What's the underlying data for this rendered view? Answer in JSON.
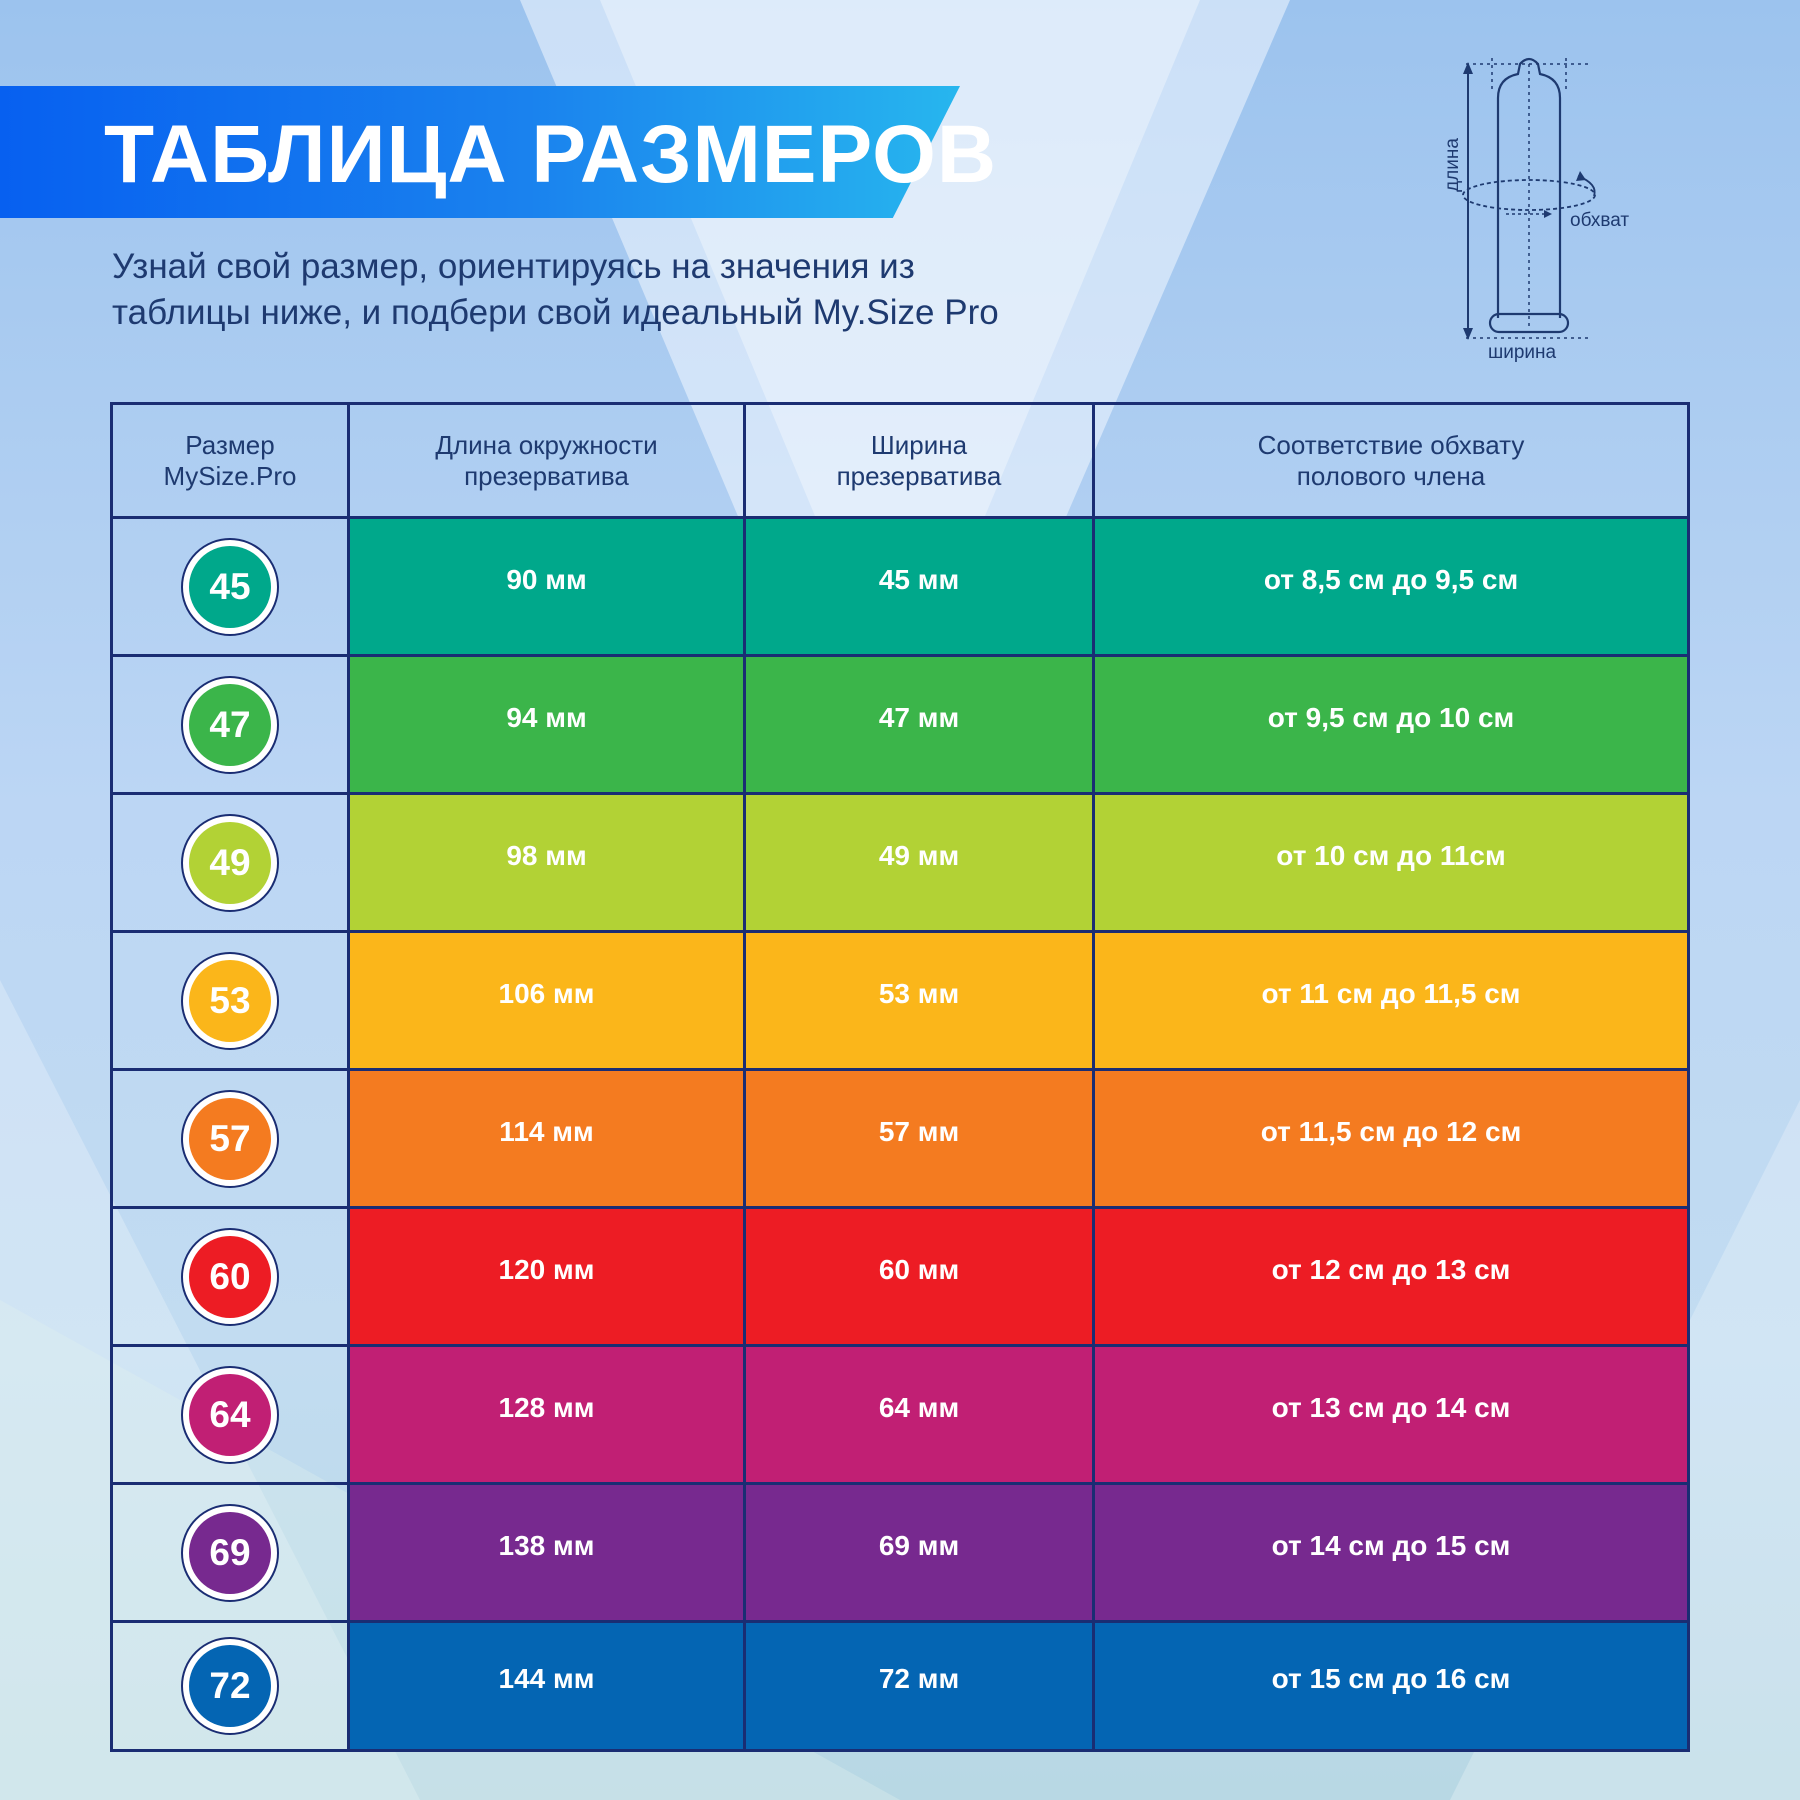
{
  "title": "ТАБЛИЦА РАЗМЕРОВ",
  "subtitle": {
    "line1": "Узнай свой размер, ориентируясь на значения из",
    "line2": "таблицы ниже, и подбери свой идеальный My.Size Pro"
  },
  "diagram": {
    "length_label": "длина",
    "girth_label": "обхват",
    "width_label": "ширина"
  },
  "table": {
    "headers": [
      {
        "line1": "Размер",
        "line2": "MySize.Pro"
      },
      {
        "line1": "Длина окружности",
        "line2": "презерватива"
      },
      {
        "line1": "Ширина",
        "line2": "презерватива"
      },
      {
        "line1": "Соответствие обхвату",
        "line2": "полового члена"
      }
    ],
    "rows": [
      {
        "size": "45",
        "circumference": "90 мм",
        "width": "45 мм",
        "girth": "от 8,5 см до 9,5 см",
        "color": "#00a88b",
        "badge_color": "#00a88b"
      },
      {
        "size": "47",
        "circumference": "94 мм",
        "width": "47 мм",
        "girth": "от 9,5 см до 10 см",
        "color": "#3bb54a",
        "badge_color": "#3bb54a"
      },
      {
        "size": "49",
        "circumference": "98 мм",
        "width": "49 мм",
        "girth": "от 10 см до 11см",
        "color": "#b2d235",
        "badge_color": "#b2d235"
      },
      {
        "size": "53",
        "circumference": "106 мм",
        "width": "53 мм",
        "girth": "от 11 см до 11,5 см",
        "color": "#fbb61a",
        "badge_color": "#fbb61a"
      },
      {
        "size": "57",
        "circumference": "114 мм",
        "width": "57 мм",
        "girth": "от 11,5 см до 12 см",
        "color": "#f47b20",
        "badge_color": "#f47b20"
      },
      {
        "size": "60",
        "circumference": "120 мм",
        "width": "60 мм",
        "girth": "от 12 см до 13 см",
        "color": "#ed1c24",
        "badge_color": "#ed1c24"
      },
      {
        "size": "64",
        "circumference": "128 мм",
        "width": "64 мм",
        "girth": "от 13 см до 14 см",
        "color": "#c11f74",
        "badge_color": "#c11f74"
      },
      {
        "size": "69",
        "circumference": "138 мм",
        "width": "69 мм",
        "girth": "от 14 см до 15 см",
        "color": "#77298f",
        "badge_color": "#77298f"
      },
      {
        "size": "72",
        "circumference": "144 мм",
        "width": "72 мм",
        "girth": "от 15 см до 16 см",
        "color": "#0465b3",
        "badge_color": "#0465b3"
      }
    ]
  },
  "colors": {
    "border": "#1a2d73",
    "title_text": "#ffffff",
    "body_text": "#1e3a70",
    "banner_start": "#0760f0",
    "banner_end": "#27b6ee"
  }
}
